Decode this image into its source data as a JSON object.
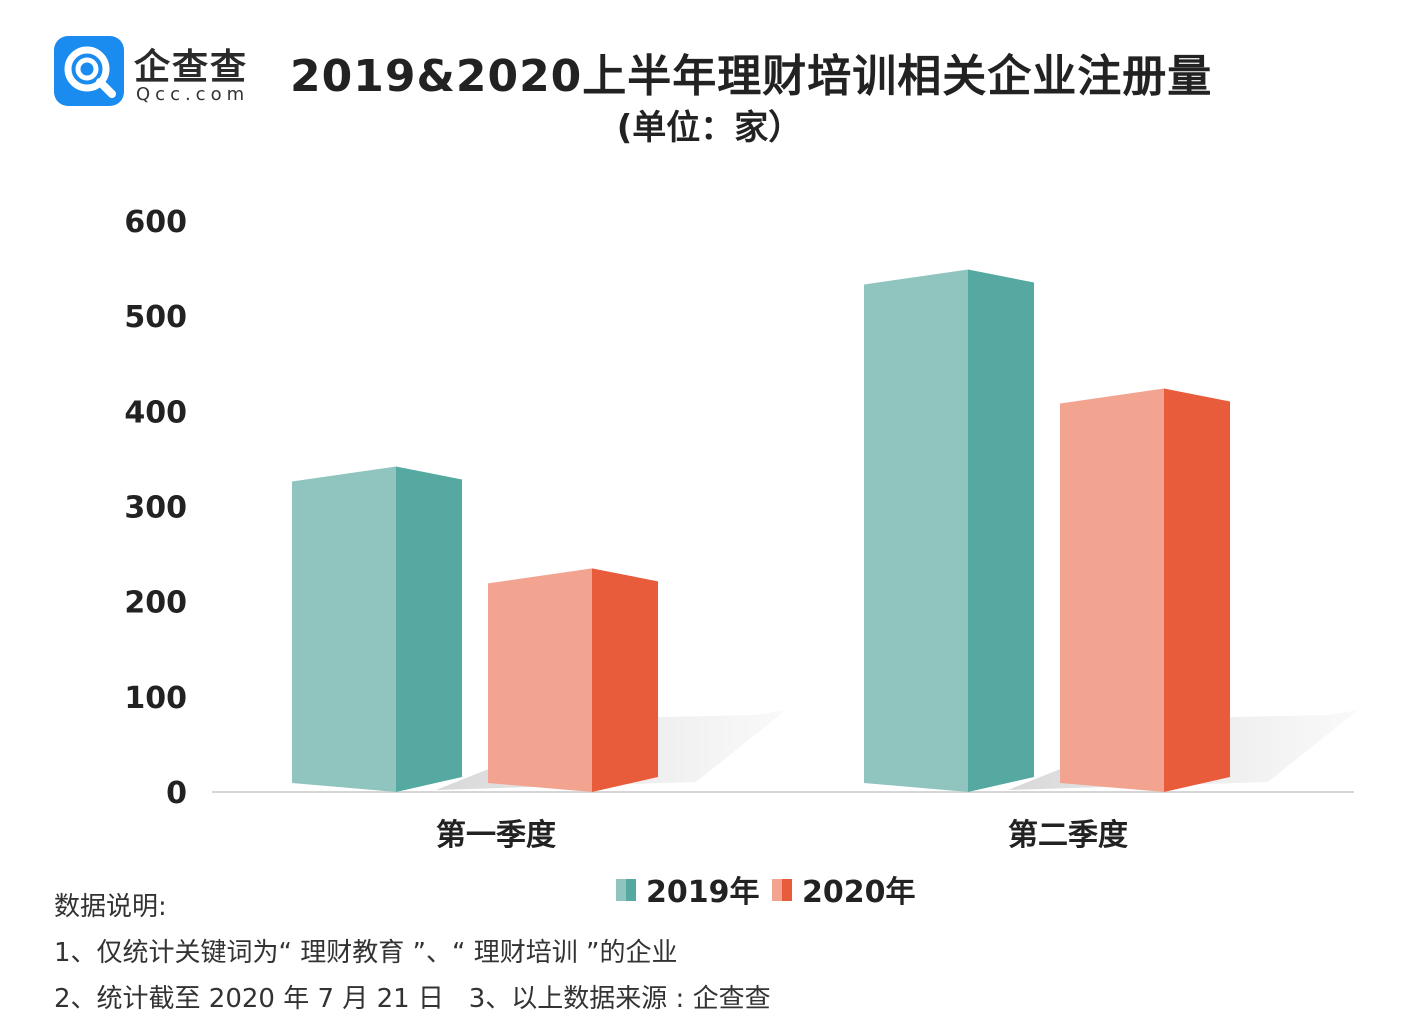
{
  "brand": {
    "name_cn": "企查查",
    "name_en": "Qcc.com",
    "color": "#1a8cf0"
  },
  "chart_data": {
    "type": "bar",
    "title": "2019&2020上半年理财培训相关企业注册量",
    "subtitle": "(单位：家）",
    "categories": [
      "第一季度",
      "第二季度"
    ],
    "series": [
      {
        "name": "2019年",
        "values": [
          342,
          549
        ],
        "color_front": "#8fc5be",
        "color_side": "#55a9a0"
      },
      {
        "name": "2020年",
        "values": [
          235,
          424
        ],
        "color_front": "#f2a490",
        "color_side": "#e85c3c"
      }
    ],
    "yticks": [
      "0",
      "100",
      "200",
      "300",
      "400",
      "500",
      "600"
    ],
    "ylim": [
      0,
      600
    ],
    "legend_position": "bottom-center",
    "grid": false
  },
  "notes": {
    "heading": "数据说明:",
    "line1_prefix": "1、仅统计关键词为",
    "line1_kw1": "“ 理财教育 ”",
    "line1_sep": "、",
    "line1_kw2": "“ 理财培训 ”",
    "line1_suffix": "的企业",
    "line2_a": "2、统计截至 2020 年 7 月 21 日",
    "line2_b": "3、以上数据来源 : 企查查"
  }
}
